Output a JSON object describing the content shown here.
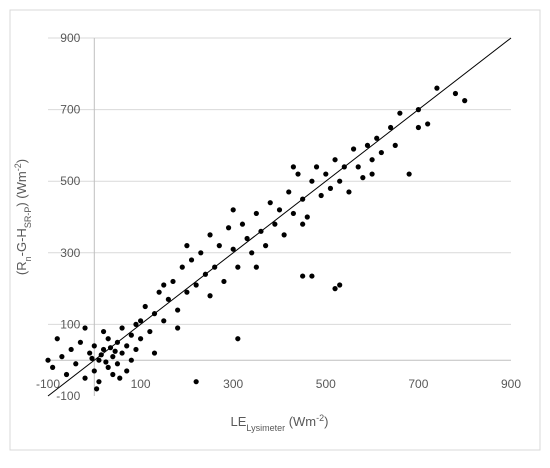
{
  "chart_data": {
    "type": "scatter",
    "xlabel": [
      {
        "text": "LE"
      },
      {
        "text": "Lysimeter",
        "shift": "sub"
      },
      {
        "text": " (Wm"
      },
      {
        "text": "-2",
        "shift": "super"
      },
      {
        "text": ")"
      }
    ],
    "ylabel": [
      {
        "text": "(R"
      },
      {
        "text": "n",
        "shift": "sub"
      },
      {
        "text": "-G-H"
      },
      {
        "text": "SR-P",
        "shift": "sub"
      },
      {
        "text": ") (Wm"
      },
      {
        "text": "-2",
        "shift": "super"
      },
      {
        "text": ")"
      }
    ],
    "xlim": [
      -100,
      900
    ],
    "ylim": [
      -100,
      900
    ],
    "xticks": [
      -100,
      100,
      300,
      500,
      700,
      900
    ],
    "yticks": [
      -100,
      100,
      300,
      500,
      700,
      900
    ],
    "grid": true,
    "color": "#000000",
    "identity_line": [
      -100,
      900
    ],
    "x": [
      -90,
      -70,
      -60,
      -50,
      -40,
      -30,
      -20,
      -10,
      0,
      0,
      10,
      10,
      20,
      20,
      30,
      30,
      40,
      40,
      50,
      50,
      60,
      60,
      70,
      70,
      80,
      80,
      90,
      90,
      100,
      100,
      -80,
      -100,
      -20,
      5,
      25,
      45,
      15,
      -5,
      35,
      55,
      110,
      120,
      130,
      140,
      150,
      160,
      170,
      180,
      190,
      200,
      210,
      220,
      230,
      240,
      250,
      260,
      270,
      280,
      290,
      300,
      310,
      320,
      330,
      340,
      350,
      360,
      370,
      380,
      390,
      400,
      410,
      420,
      430,
      440,
      450,
      460,
      470,
      480,
      490,
      500,
      510,
      520,
      530,
      540,
      550,
      560,
      570,
      580,
      590,
      600,
      610,
      620,
      640,
      650,
      660,
      700,
      720,
      740,
      780,
      800,
      700,
      200,
      250,
      150,
      350,
      450,
      430,
      600,
      300,
      180,
      530,
      520,
      450,
      470,
      220,
      310,
      680,
      130
    ],
    "y": [
      -20,
      10,
      -40,
      30,
      -10,
      50,
      -50,
      20,
      -30,
      40,
      0,
      -60,
      30,
      80,
      -20,
      60,
      10,
      -40,
      50,
      -10,
      20,
      90,
      -30,
      40,
      70,
      0,
      100,
      30,
      60,
      110,
      60,
      0,
      90,
      -80,
      -5,
      25,
      15,
      5,
      35,
      -50,
      150,
      80,
      130,
      190,
      110,
      170,
      220,
      140,
      260,
      190,
      280,
      210,
      300,
      240,
      350,
      260,
      320,
      220,
      370,
      310,
      260,
      380,
      340,
      300,
      410,
      360,
      320,
      440,
      380,
      420,
      350,
      470,
      410,
      520,
      450,
      400,
      500,
      540,
      460,
      520,
      480,
      560,
      500,
      540,
      470,
      590,
      540,
      510,
      600,
      560,
      620,
      580,
      650,
      600,
      690,
      650,
      660,
      760,
      745,
      725,
      700,
      320,
      180,
      210,
      260,
      380,
      540,
      520,
      420,
      90,
      210,
      200,
      235,
      235,
      -60,
      60,
      520,
      20
    ]
  }
}
